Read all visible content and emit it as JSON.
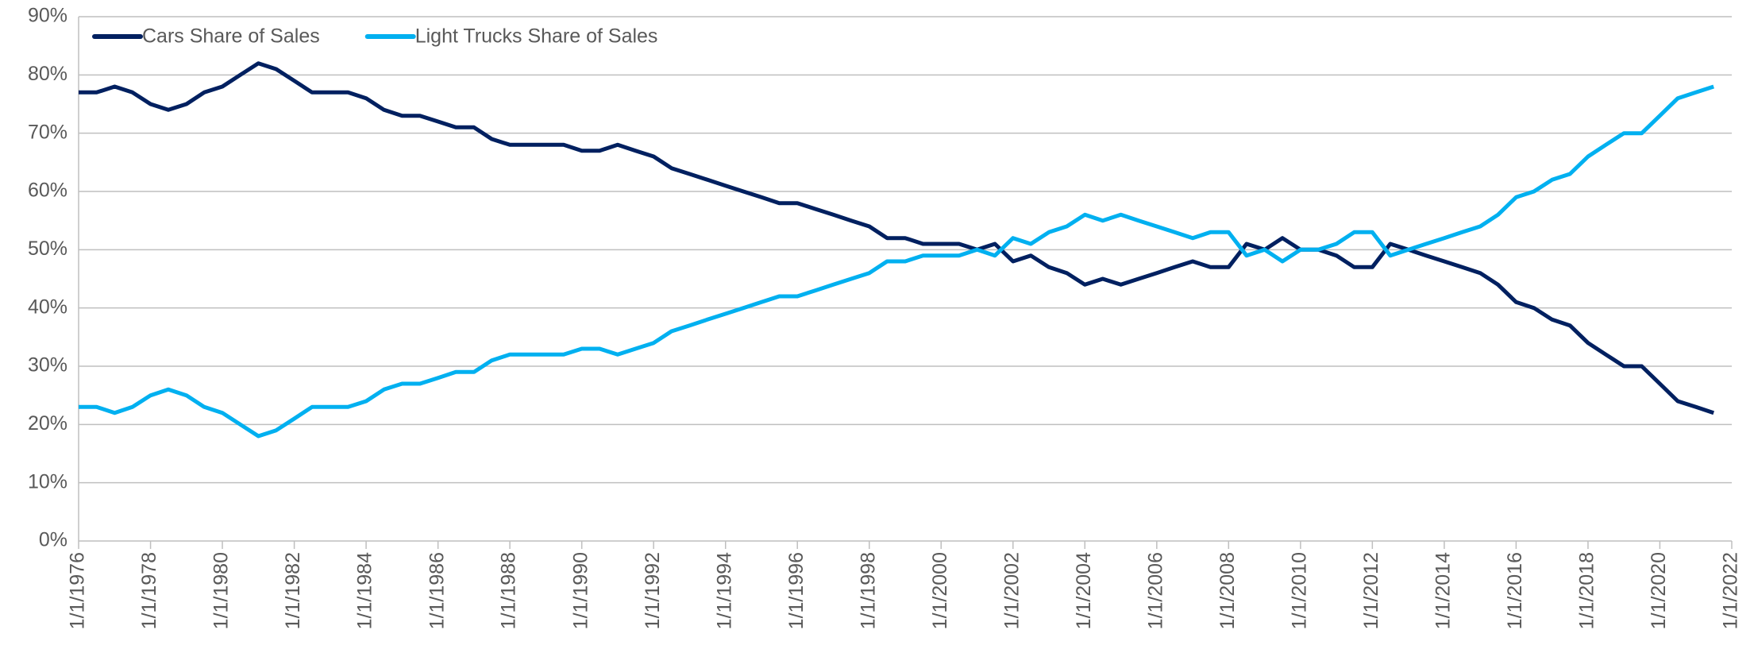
{
  "chart_data": {
    "type": "line",
    "x": [
      "1/1/1976",
      "7/1/1976",
      "1/1/1977",
      "7/1/1977",
      "1/1/1978",
      "7/1/1978",
      "1/1/1979",
      "7/1/1979",
      "1/1/1980",
      "7/1/1980",
      "1/1/1981",
      "7/1/1981",
      "1/1/1982",
      "7/1/1982",
      "1/1/1983",
      "7/1/1983",
      "1/1/1984",
      "7/1/1984",
      "1/1/1985",
      "7/1/1985",
      "1/1/1986",
      "7/1/1986",
      "1/1/1987",
      "7/1/1987",
      "1/1/1988",
      "7/1/1988",
      "1/1/1989",
      "7/1/1989",
      "1/1/1990",
      "7/1/1990",
      "1/1/1991",
      "7/1/1991",
      "1/1/1992",
      "7/1/1992",
      "1/1/1993",
      "7/1/1993",
      "1/1/1994",
      "7/1/1994",
      "1/1/1995",
      "7/1/1995",
      "1/1/1996",
      "7/1/1996",
      "1/1/1997",
      "7/1/1997",
      "1/1/1998",
      "7/1/1998",
      "1/1/1999",
      "7/1/1999",
      "1/1/2000",
      "7/1/2000",
      "1/1/2001",
      "7/1/2001",
      "1/1/2002",
      "7/1/2002",
      "1/1/2003",
      "7/1/2003",
      "1/1/2004",
      "7/1/2004",
      "1/1/2005",
      "7/1/2005",
      "1/1/2006",
      "7/1/2006",
      "1/1/2007",
      "7/1/2007",
      "1/1/2008",
      "7/1/2008",
      "1/1/2009",
      "7/1/2009",
      "1/1/2010",
      "7/1/2010",
      "1/1/2011",
      "7/1/2011",
      "1/1/2012",
      "7/1/2012",
      "1/1/2013",
      "7/1/2013",
      "1/1/2014",
      "7/1/2014",
      "1/1/2015",
      "7/1/2015",
      "1/1/2016",
      "7/1/2016",
      "1/1/2017",
      "7/1/2017",
      "1/1/2018",
      "7/1/2018",
      "1/1/2019",
      "7/1/2019",
      "1/1/2020",
      "7/1/2020",
      "1/1/2021",
      "7/1/2021"
    ],
    "series": [
      {
        "name": "Cars Share of Sales",
        "color": "#002060",
        "values": [
          77,
          77,
          78,
          77,
          75,
          74,
          75,
          77,
          78,
          80,
          82,
          81,
          79,
          77,
          77,
          77,
          76,
          74,
          73,
          73,
          72,
          71,
          71,
          69,
          68,
          68,
          68,
          68,
          67,
          67,
          68,
          67,
          66,
          64,
          63,
          62,
          61,
          60,
          59,
          58,
          58,
          57,
          56,
          55,
          54,
          52,
          52,
          51,
          51,
          51,
          50,
          51,
          48,
          49,
          47,
          46,
          44,
          45,
          44,
          45,
          46,
          47,
          48,
          47,
          47,
          51,
          50,
          52,
          50,
          50,
          49,
          47,
          47,
          51,
          50,
          49,
          48,
          47,
          46,
          44,
          41,
          40,
          38,
          37,
          34,
          32,
          30,
          30,
          27,
          24,
          23,
          22
        ]
      },
      {
        "name": "Light Trucks Share of Sales",
        "color": "#00b0f0",
        "values": [
          23,
          23,
          22,
          23,
          25,
          26,
          25,
          23,
          22,
          20,
          18,
          19,
          21,
          23,
          23,
          23,
          24,
          26,
          27,
          27,
          28,
          29,
          29,
          31,
          32,
          32,
          32,
          32,
          33,
          33,
          32,
          33,
          34,
          36,
          37,
          38,
          39,
          40,
          41,
          42,
          42,
          43,
          44,
          45,
          46,
          48,
          48,
          49,
          49,
          49,
          50,
          49,
          52,
          51,
          53,
          54,
          56,
          55,
          56,
          55,
          54,
          53,
          52,
          53,
          53,
          49,
          50,
          48,
          50,
          50,
          51,
          53,
          53,
          49,
          50,
          51,
          52,
          53,
          54,
          56,
          59,
          60,
          62,
          63,
          66,
          68,
          70,
          70,
          73,
          76,
          77,
          78
        ]
      }
    ],
    "xlim": [
      "1/1/1976",
      "1/1/2022"
    ],
    "xticks": [
      "1/1/1976",
      "1/1/1978",
      "1/1/1980",
      "1/1/1982",
      "1/1/1984",
      "1/1/1986",
      "1/1/1988",
      "1/1/1990",
      "1/1/1992",
      "1/1/1994",
      "1/1/1996",
      "1/1/1998",
      "1/1/2000",
      "1/1/2002",
      "1/1/2004",
      "1/1/2006",
      "1/1/2008",
      "1/1/2010",
      "1/1/2012",
      "1/1/2014",
      "1/1/2016",
      "1/1/2018",
      "1/1/2020",
      "1/1/2022"
    ],
    "ylim": [
      0,
      90
    ],
    "yticks": [
      {
        "value": 0,
        "label": "0%"
      },
      {
        "value": 10,
        "label": "10%"
      },
      {
        "value": 20,
        "label": "20%"
      },
      {
        "value": 30,
        "label": "30%"
      },
      {
        "value": 40,
        "label": "40%"
      },
      {
        "value": 50,
        "label": "50%"
      },
      {
        "value": 60,
        "label": "60%"
      },
      {
        "value": 70,
        "label": "70%"
      },
      {
        "value": 80,
        "label": "80%"
      },
      {
        "value": 90,
        "label": "90%"
      }
    ],
    "grid": true,
    "legend": "top-left"
  }
}
